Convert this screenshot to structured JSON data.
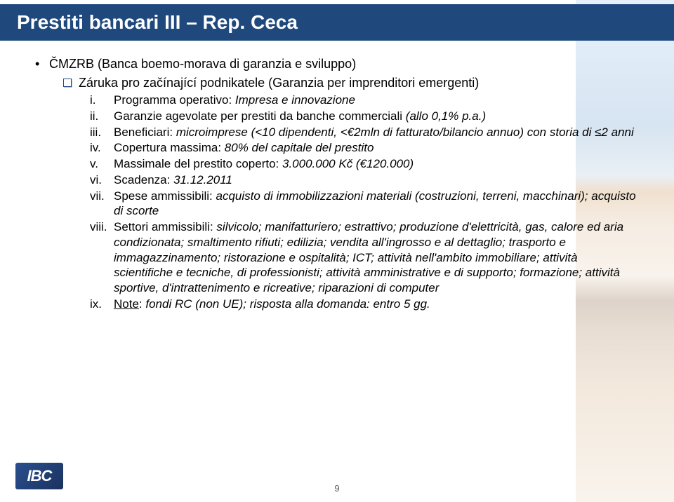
{
  "colors": {
    "title_bar_bg": "#1f497d",
    "title_text": "#ffffff",
    "body_text": "#000000",
    "bullet_box_border": "#1f497d",
    "page_num": "#595959",
    "logo_bg": "#1f3a6c"
  },
  "title": "Prestiti bancari III – Rep. Ceca",
  "main_bullet": "ČMZRB (Banca boemo-morava di garanzia e sviluppo)",
  "sub_bullet": "Záruka pro začínající podnikatele (Garanzia per imprenditori emergenti)",
  "items": [
    {
      "marker": "i.",
      "prefix": "Programma operativo: ",
      "body": "Impresa e innovazione"
    },
    {
      "marker": "ii.",
      "prefix": "Garanzie agevolate per prestiti da banche commerciali ",
      "body": "(allo 0,1% p.a.)"
    },
    {
      "marker": "iii.",
      "prefix": "Beneficiari: ",
      "body": "microimprese (<10 dipendenti, <€2mln di fatturato/bilancio annuo) con storia di ≤2 anni"
    },
    {
      "marker": "iv.",
      "prefix": "Copertura massima: ",
      "body": "80% del capitale del prestito"
    },
    {
      "marker": "v.",
      "prefix": "Massimale del prestito coperto: ",
      "body": "3.000.000 Kč (€120.000)"
    },
    {
      "marker": "vi.",
      "prefix": "Scadenza: ",
      "body": "31.12.2011"
    },
    {
      "marker": "vii.",
      "prefix": "Spese ammissibili: ",
      "body": "acquisto di immobilizzazioni materiali (costruzioni, terreni, macchinari); acquisto di scorte"
    },
    {
      "marker": "viii.",
      "prefix": "Settori ammissibili: ",
      "body": "silvicolo; manifatturiero; estrattivo; produzione d'elettricità, gas, calore ed aria condizionata; smaltimento rifiuti; edilizia; vendita all'ingrosso e al dettaglio; trasporto e immagazzinamento; ristorazione e ospitalità; ICT; attività nell'ambito immobiliare; attività scientifiche e tecniche, di professionisti; attività amministrative e di supporto; formazione; attività sportive, d'intrattenimento e ricreative; riparazioni di computer"
    },
    {
      "marker": "ix.",
      "prefix_underlined": "Note",
      "prefix_after": ": ",
      "body": "fondi RC (non UE); risposta alla domanda: entro 5 gg."
    }
  ],
  "logo_text": "IBC",
  "page_number": "9"
}
